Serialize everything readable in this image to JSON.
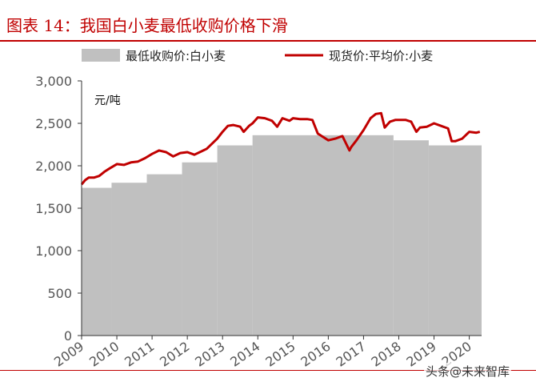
{
  "title": "图表 14：我国白小麦最低收购价格下滑",
  "watermark": "头条@未来智库",
  "colors": {
    "area": "#c0c0c0",
    "line": "#c00000",
    "title": "#c00000",
    "axis": "#333333"
  },
  "chart_data": {
    "type": "area",
    "unit_label": "元/吨",
    "legend_position": "top",
    "grid": false,
    "ylim": [
      0,
      3000
    ],
    "y_ticks": [
      "0",
      "500",
      "1,000",
      "1,500",
      "2,000",
      "2,500",
      "3,000"
    ],
    "x_ticks": [
      "2009",
      "2010",
      "2011",
      "2012",
      "2013",
      "2014",
      "2015",
      "2016",
      "2017",
      "2018",
      "2019",
      "2020"
    ],
    "xlim": [
      2009.0,
      2020.35
    ],
    "series": [
      {
        "name": "最低收购价:白小麦",
        "type": "area",
        "steps": [
          {
            "start": 2009.0,
            "value": 1740
          },
          {
            "start": 2009.85,
            "value": 1800
          },
          {
            "start": 2010.85,
            "value": 1900
          },
          {
            "start": 2011.85,
            "value": 2040
          },
          {
            "start": 2012.85,
            "value": 2240
          },
          {
            "start": 2013.85,
            "value": 2360
          },
          {
            "start": 2017.85,
            "value": 2300
          },
          {
            "start": 2018.85,
            "value": 2240
          }
        ]
      },
      {
        "name": "现货价:平均价:小麦",
        "type": "line",
        "x": [
          2009.0,
          2009.1,
          2009.2,
          2009.35,
          2009.5,
          2009.65,
          2009.8,
          2010.0,
          2010.2,
          2010.4,
          2010.6,
          2010.8,
          2011.0,
          2011.2,
          2011.4,
          2011.6,
          2011.8,
          2012.0,
          2012.2,
          2012.4,
          2012.55,
          2012.7,
          2012.85,
          2013.0,
          2013.15,
          2013.3,
          2013.5,
          2013.6,
          2013.75,
          2013.85,
          2014.0,
          2014.2,
          2014.4,
          2014.55,
          2014.7,
          2014.9,
          2015.0,
          2015.2,
          2015.4,
          2015.55,
          2015.7,
          2015.85,
          2016.0,
          2016.2,
          2016.4,
          2016.6,
          2016.65,
          2016.8,
          2017.0,
          2017.2,
          2017.35,
          2017.5,
          2017.6,
          2017.75,
          2017.9,
          2018.0,
          2018.2,
          2018.35,
          2018.5,
          2018.6,
          2018.8,
          2019.0,
          2019.2,
          2019.4,
          2019.5,
          2019.6,
          2019.8,
          2020.0,
          2020.2,
          2020.3
        ],
        "values": [
          1780,
          1830,
          1860,
          1860,
          1880,
          1930,
          1970,
          2020,
          2010,
          2040,
          2050,
          2090,
          2140,
          2180,
          2160,
          2110,
          2150,
          2160,
          2130,
          2170,
          2200,
          2260,
          2320,
          2400,
          2470,
          2480,
          2460,
          2400,
          2470,
          2500,
          2570,
          2560,
          2530,
          2460,
          2560,
          2530,
          2560,
          2550,
          2550,
          2540,
          2380,
          2340,
          2300,
          2320,
          2350,
          2180,
          2220,
          2300,
          2420,
          2560,
          2610,
          2620,
          2450,
          2520,
          2540,
          2540,
          2540,
          2520,
          2400,
          2450,
          2460,
          2500,
          2470,
          2440,
          2290,
          2290,
          2320,
          2400,
          2390,
          2400
        ]
      }
    ]
  }
}
